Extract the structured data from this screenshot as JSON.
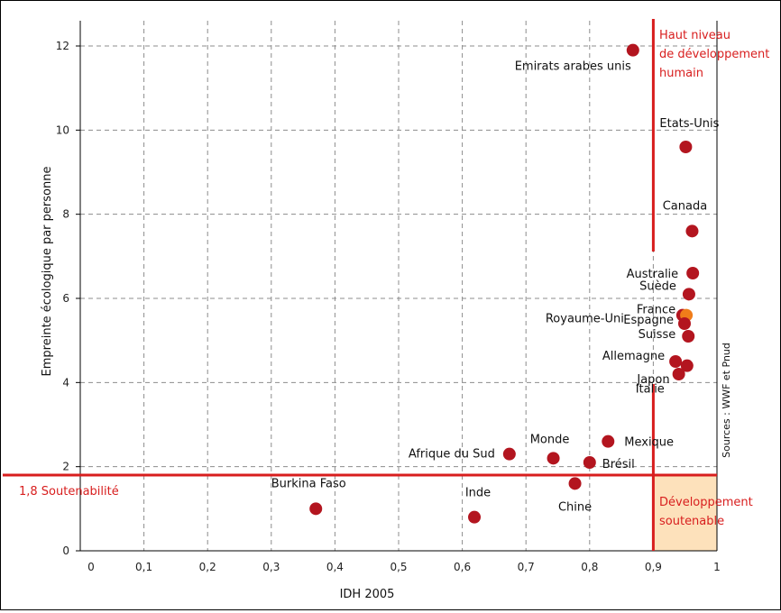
{
  "chart_data": {
    "type": "scatter",
    "xlabel": "IDH 2005",
    "ylabel": "Empreinte écologique par personne",
    "xlim": [
      0,
      1
    ],
    "ylim": [
      0,
      12.5
    ],
    "x_ticks": [
      "0",
      "0,1",
      "0,2",
      "0,3",
      "0,4",
      "0,5",
      "0,6",
      "0,7",
      "0,8",
      "0,9",
      "1"
    ],
    "y_ticks": [
      "0",
      "2",
      "4",
      "6",
      "8",
      "10",
      "12"
    ],
    "grid": true,
    "points": [
      {
        "label": "Emirats arabes unis",
        "x": 0.868,
        "y": 11.9,
        "color": "#b3151f"
      },
      {
        "label": "Etats-Unis",
        "x": 0.951,
        "y": 9.6,
        "color": "#b3151f"
      },
      {
        "label": "Canada",
        "x": 0.961,
        "y": 7.6,
        "color": "#b3151f"
      },
      {
        "label": "Australie",
        "x": 0.962,
        "y": 6.6,
        "color": "#b3151f"
      },
      {
        "label": "Suède",
        "x": 0.956,
        "y": 6.1,
        "color": "#b3151f"
      },
      {
        "label": "Royaume-Uni",
        "x": 0.946,
        "y": 5.6,
        "color": "#b3151f"
      },
      {
        "label": "France",
        "x": 0.952,
        "y": 5.6,
        "color": "#f07d1a"
      },
      {
        "label": "Espagne",
        "x": 0.949,
        "y": 5.4,
        "color": "#b3151f"
      },
      {
        "label": "Suisse",
        "x": 0.955,
        "y": 5.1,
        "color": "#b3151f"
      },
      {
        "label": "Allemagne",
        "x": 0.935,
        "y": 4.5,
        "color": "#b3151f"
      },
      {
        "label": "Italie",
        "x": 0.953,
        "y": 4.4,
        "color": "#b3151f"
      },
      {
        "label": "Japon",
        "x": 0.94,
        "y": 4.2,
        "color": "#b3151f"
      },
      {
        "label": "Mexique",
        "x": 0.829,
        "y": 2.6,
        "color": "#b3151f"
      },
      {
        "label": "Afrique du Sud",
        "x": 0.674,
        "y": 2.3,
        "color": "#b3151f"
      },
      {
        "label": "Monde",
        "x": 0.743,
        "y": 2.2,
        "color": "#b3151f"
      },
      {
        "label": "Brésil",
        "x": 0.8,
        "y": 2.1,
        "color": "#b3151f"
      },
      {
        "label": "Chine",
        "x": 0.777,
        "y": 1.6,
        "color": "#b3151f"
      },
      {
        "label": "Burkina Faso",
        "x": 0.37,
        "y": 1.0,
        "color": "#b3151f"
      },
      {
        "label": "Inde",
        "x": 0.619,
        "y": 0.8,
        "color": "#b3151f"
      }
    ],
    "threshold_lines": [
      {
        "axis": "x",
        "value": 0.9,
        "label": "Haut niveau de développement humain"
      },
      {
        "axis": "y",
        "value": 1.8,
        "label": "1,8 Soutenabilité"
      }
    ],
    "annotations": {
      "haut_niveau": [
        "Haut niveau",
        "de développement",
        "humain"
      ],
      "soutenabilite": "1,8 Soutenabilité",
      "developpement": [
        "Développement",
        "soutenable"
      ],
      "sources": "Sources : WWF et Pnud"
    },
    "colors": {
      "accent": "#d81e1e",
      "point": "#b3151f",
      "highlight": "#f07d1a",
      "zone_fill": "#fde1bb",
      "grid": "#8c8c8c"
    }
  }
}
